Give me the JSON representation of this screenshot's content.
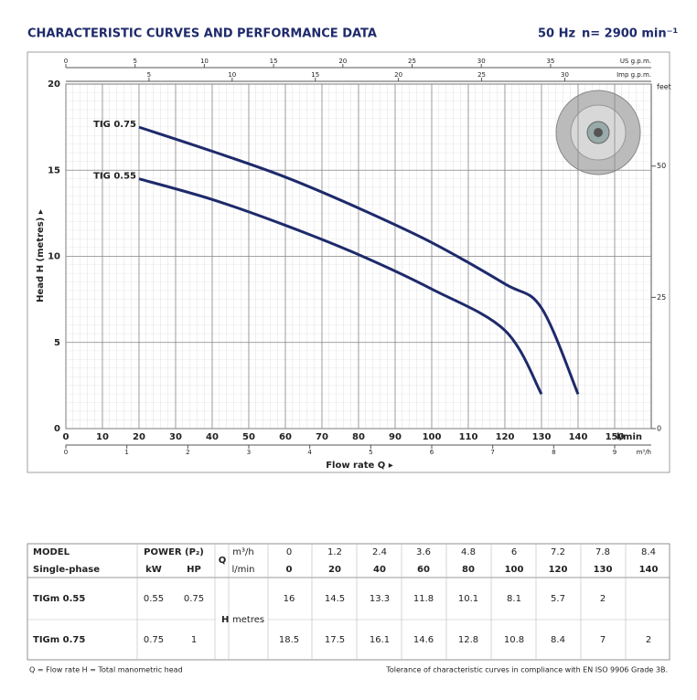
{
  "header": {
    "title": "CHARACTERISTIC CURVES AND PERFORMANCE DATA",
    "frequency": "50 Hz",
    "speed": "n= 2900 min⁻¹"
  },
  "chart_data": {
    "type": "line",
    "xlabel": "Flow rate Q ▸",
    "ylabel": "Head H (metres) ▸",
    "xlim": [
      0,
      160
    ],
    "xticks": [
      0,
      10,
      20,
      30,
      40,
      50,
      60,
      70,
      80,
      90,
      100,
      110,
      120,
      130,
      140,
      150
    ],
    "x_unit": "l/min",
    "ylim": [
      0,
      20
    ],
    "yticks": [
      0,
      5,
      10,
      15,
      20
    ],
    "grid": true,
    "top_axes": [
      {
        "label": "US g.p.m.",
        "xlim": [
          0,
          42.27
        ],
        "xticks": [
          0,
          5,
          10,
          15,
          20,
          25,
          30,
          35
        ]
      },
      {
        "label": "Imp g.p.m.",
        "xlim": [
          0,
          35.2
        ],
        "xticks": [
          5,
          10,
          15,
          20,
          25,
          30
        ]
      }
    ],
    "bottom_axis2": {
      "label": "m³/h",
      "xlim": [
        0,
        9.6
      ],
      "xticks": [
        0,
        1,
        2,
        3,
        4,
        5,
        6,
        7,
        8,
        9
      ]
    },
    "y2label": "feet",
    "y2lim": [
      0,
      65.62
    ],
    "y2ticks": [
      0,
      25,
      50
    ],
    "series": [
      {
        "name": "TIG 0.75",
        "color": "#1e2a6b",
        "x": [
          20,
          40,
          60,
          80,
          100,
          120,
          130,
          140
        ],
        "values": [
          17.5,
          16.1,
          14.6,
          12.8,
          10.8,
          8.4,
          7,
          2
        ]
      },
      {
        "name": "TIG 0.55",
        "color": "#1e2a6b",
        "x": [
          20,
          40,
          60,
          80,
          100,
          120,
          130
        ],
        "values": [
          14.5,
          13.3,
          11.8,
          10.1,
          8.1,
          5.7,
          2
        ]
      }
    ]
  },
  "table": {
    "model": "MODEL",
    "phase": "Single-phase",
    "power": "POWER (P₂)",
    "kw": "kW",
    "hp": "HP",
    "q": "Q",
    "q_unit1": "m³/h",
    "q_unit2": "l/min",
    "m3h": [
      0,
      1.2,
      2.4,
      3.6,
      4.8,
      6,
      7.2,
      7.8,
      8.4
    ],
    "lmin": [
      0,
      20,
      40,
      60,
      80,
      100,
      120,
      130,
      140
    ],
    "h": "H",
    "h_unit": "metres",
    "rows": [
      {
        "model": "TIGm 0.55",
        "kw": 0.55,
        "hp": 0.75,
        "values": [
          16,
          14.5,
          13.3,
          11.8,
          10.1,
          8.1,
          5.7,
          2,
          null
        ]
      },
      {
        "model": "TIGm 0.75",
        "kw": 0.75,
        "hp": 1,
        "values": [
          18.5,
          17.5,
          16.1,
          14.6,
          12.8,
          10.8,
          8.4,
          7,
          2
        ]
      }
    ]
  },
  "footer": {
    "legend": "Q = Flow rate  H = Total manometric head",
    "tolerance": "Tolerance of characteristic curves in compliance with EN ISO 9906 Grade 3B."
  }
}
